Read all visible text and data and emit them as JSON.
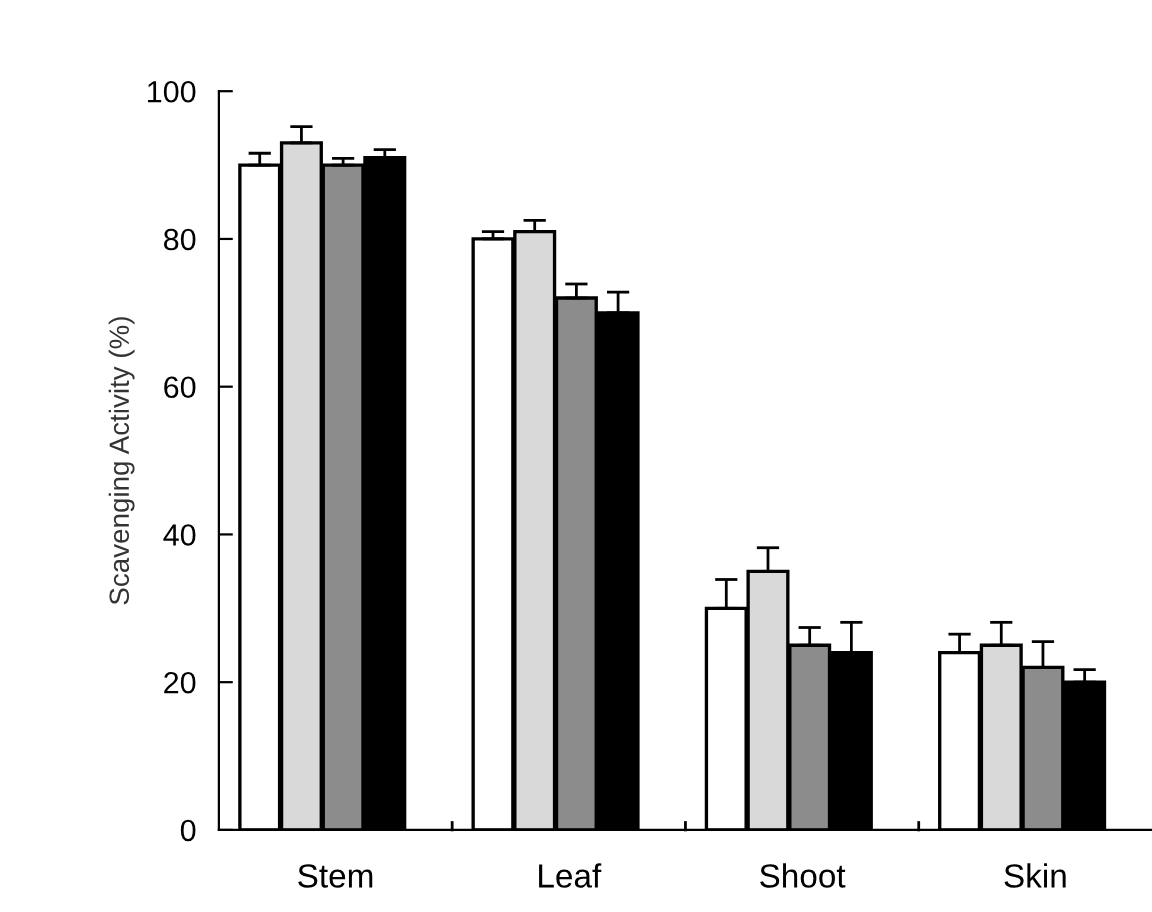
{
  "chart_data": {
    "type": "bar",
    "ylabel": "Scavenging Activity (%)",
    "categories": [
      "Stem",
      "Leaf",
      "Shoot",
      "Skin"
    ],
    "series": [
      {
        "color": "#ffffff",
        "values": [
          90,
          80,
          30,
          24
        ],
        "errors": [
          [
            90,
            91.6
          ],
          [
            80,
            81
          ],
          [
            30,
            33.9
          ],
          [
            24,
            26.5
          ]
        ]
      },
      {
        "color": "#d9d9d9",
        "values": [
          93,
          81,
          35,
          25
        ],
        "errors": [
          [
            93,
            95.2
          ],
          [
            81,
            82.5
          ],
          [
            35,
            38.2
          ],
          [
            25,
            28.1
          ]
        ]
      },
      {
        "color": "#8c8c8c",
        "values": [
          90,
          72,
          25,
          22
        ],
        "errors": [
          [
            90,
            90.9
          ],
          [
            72,
            73.9
          ],
          [
            25,
            27.4
          ],
          [
            22,
            25.5
          ]
        ]
      },
      {
        "color": "#000000",
        "values": [
          91,
          70,
          24,
          20
        ],
        "errors": [
          [
            91,
            92.1
          ],
          [
            70,
            72.8
          ],
          [
            24,
            28.1
          ],
          [
            20,
            21.7
          ]
        ]
      }
    ],
    "ylim": [
      0,
      100
    ],
    "yticks": [
      0,
      20,
      40,
      60,
      80,
      100
    ],
    "grid": false,
    "legend": false
  }
}
